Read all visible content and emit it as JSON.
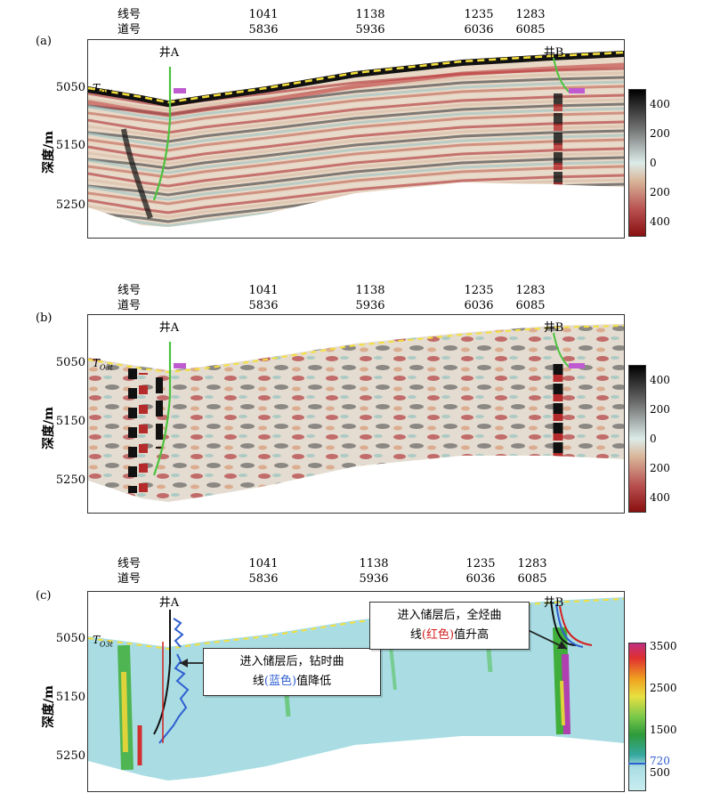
{
  "header_labels": {
    "line": "线号",
    "trace": "道号"
  },
  "line_numbers": [
    "1041",
    "1138",
    "1235",
    "1283"
  ],
  "trace_numbers": [
    "5836",
    "5936",
    "6036",
    "6085"
  ],
  "depth_label": "深度/m",
  "depth_ticks": [
    "5050",
    "5150",
    "5250"
  ],
  "wells": {
    "a": "井A",
    "b": "井B"
  },
  "horizon": {
    "main": "T",
    "sub": "O3t"
  },
  "panels": [
    {
      "id": "a",
      "label": "(a)",
      "colorbar_ticks": [
        "400",
        "200",
        "0",
        "200",
        "400"
      ]
    },
    {
      "id": "b",
      "label": "(b)",
      "colorbar_ticks": [
        "400",
        "200",
        "0",
        "200",
        "400"
      ]
    },
    {
      "id": "c",
      "label": "(c)",
      "colorbar_ticks": [
        "3500",
        "2500",
        "1500",
        "500"
      ],
      "colorbar_marker": "720"
    }
  ],
  "callouts": {
    "left": {
      "line1": "进入储层后，钻时曲",
      "line2_pre": "线",
      "line2_color_word": "(蓝色)",
      "line2_post": "值降低"
    },
    "right": {
      "line1": "进入储层后，全烃曲",
      "line2_pre": "线",
      "line2_color_word": "(红色)",
      "line2_post": "值升高"
    }
  },
  "colors": {
    "seis_pos": "#111111",
    "seis_neg": "#b52a2a",
    "seis_zero": "#dcece9",
    "well_track": "#4cc23e",
    "horizon": "#f5e03a",
    "gr_blue": "#2f5fd0",
    "gas_red": "#d32020",
    "imp_bg": "#a9dde3"
  }
}
